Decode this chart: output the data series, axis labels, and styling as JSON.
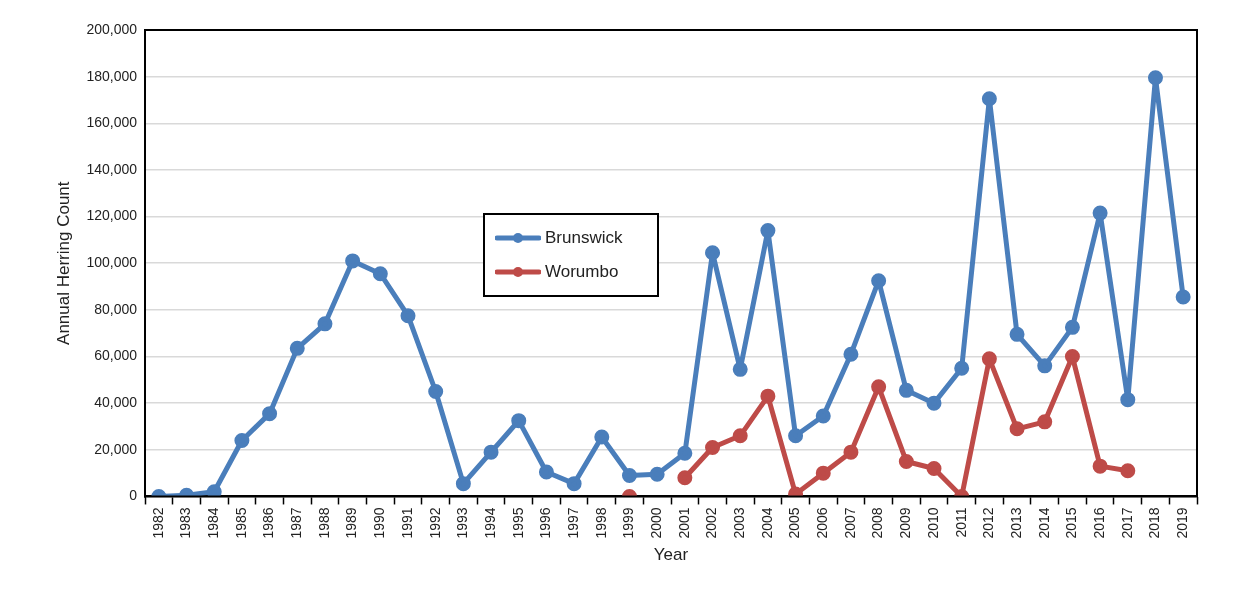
{
  "chart_data": {
    "type": "line",
    "xlabel": "Year",
    "ylabel": "Annual Herring Count",
    "categories": [
      "1982",
      "1983",
      "1984",
      "1985",
      "1986",
      "1987",
      "1988",
      "1989",
      "1990",
      "1991",
      "1992",
      "1993",
      "1994",
      "1995",
      "1996",
      "1997",
      "1998",
      "1999",
      "2000",
      "2001",
      "2002",
      "2003",
      "2004",
      "2005",
      "2006",
      "2007",
      "2008",
      "2009",
      "2010",
      "2011",
      "2012",
      "2013",
      "2014",
      "2015",
      "2016",
      "2017",
      "2018",
      "2019"
    ],
    "series": [
      {
        "name": "Brunswick",
        "color": "#4a7ebb",
        "values": [
          0,
          500,
          2000,
          24000,
          35500,
          63500,
          74000,
          101000,
          95500,
          77500,
          45000,
          5500,
          19000,
          32500,
          10500,
          5500,
          25500,
          9000,
          9500,
          18500,
          104500,
          54500,
          114000,
          26000,
          34500,
          61000,
          92500,
          45500,
          40000,
          55000,
          170500,
          69500,
          56000,
          72500,
          121500,
          41500,
          179500,
          85500
        ]
      },
      {
        "name": "Worumbo",
        "color": "#be4b48",
        "values": [
          null,
          null,
          null,
          null,
          null,
          null,
          null,
          null,
          null,
          null,
          null,
          null,
          null,
          null,
          null,
          null,
          null,
          0,
          null,
          8000,
          21000,
          26000,
          43000,
          1000,
          10000,
          19000,
          47000,
          15000,
          12000,
          0,
          59000,
          29000,
          32000,
          60000,
          13000,
          11000,
          null,
          null
        ]
      }
    ],
    "ylim": [
      0,
      200000
    ],
    "yticks": [
      {
        "value": 0,
        "label": "0"
      },
      {
        "value": 20000,
        "label": "20,000"
      },
      {
        "value": 40000,
        "label": "40,000"
      },
      {
        "value": 60000,
        "label": "60,000"
      },
      {
        "value": 80000,
        "label": "80,000"
      },
      {
        "value": 100000,
        "label": "100,000"
      },
      {
        "value": 120000,
        "label": "120,000"
      },
      {
        "value": 140000,
        "label": "140,000"
      },
      {
        "value": 160000,
        "label": "160,000"
      },
      {
        "value": 180000,
        "label": "180,000"
      },
      {
        "value": 200000,
        "label": "200,000"
      }
    ],
    "grid": "y",
    "legend": "center",
    "marker": "circle",
    "line_style": "solid"
  }
}
